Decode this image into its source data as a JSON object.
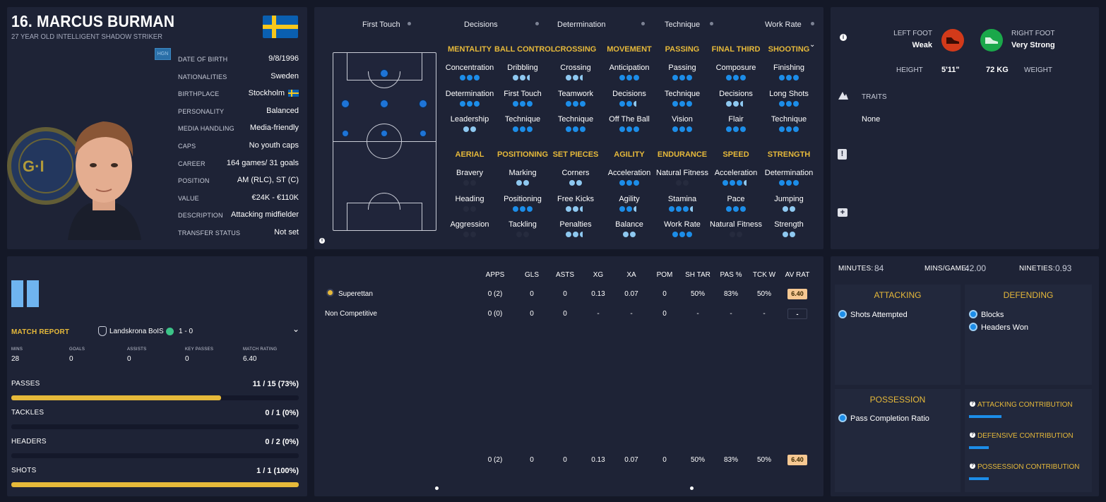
{
  "player": {
    "name": "16. MARCUS BURMAN",
    "subtitle": "27 YEAR OLD INTELLIGENT SHADOW STRIKER",
    "hgn_badge": "HGN",
    "flag_colors": {
      "blue": "#0a5fb0",
      "yellow": "#f6c71b"
    },
    "info": [
      {
        "key": "DATE OF BIRTH",
        "value": "9/8/1996"
      },
      {
        "key": "NATIONALITIES",
        "value": "Sweden"
      },
      {
        "key": "BIRTHPLACE",
        "value": "Stockholm"
      },
      {
        "key": "PERSONALITY",
        "value": "Balanced"
      },
      {
        "key": "MEDIA HANDLING",
        "value": "Media-friendly"
      },
      {
        "key": "CAPS",
        "value": "No youth caps"
      },
      {
        "key": "CAREER",
        "value": "164  games/  31 goals"
      },
      {
        "key": "POSITION",
        "value": "AM (RLC), ST (C)"
      },
      {
        "key": "VALUE",
        "value": "€24K - €110K"
      },
      {
        "key": "DESCRIPTION",
        "value": "Attacking midfielder"
      },
      {
        "key": "TRANSFER STATUS",
        "value": "Not set"
      }
    ]
  },
  "highlights": [
    "First Touch",
    "Decisions",
    "Determination",
    "Technique",
    "Work Rate"
  ],
  "attributes": {
    "row1": [
      {
        "category": "MENTALITY",
        "items": [
          {
            "name": "Concentration",
            "dots": "fff"
          },
          {
            "name": "Determination",
            "dots": "fff"
          },
          {
            "name": "Leadership",
            "dots": "ll"
          }
        ]
      },
      {
        "category": "BALL CONTROL",
        "items": [
          {
            "name": "Dribbling",
            "dots": "llh"
          },
          {
            "name": "First Touch",
            "dots": "fff"
          },
          {
            "name": "Technique",
            "dots": "fff"
          }
        ]
      },
      {
        "category": "CROSSING",
        "items": [
          {
            "name": "Crossing",
            "dots": "llh"
          },
          {
            "name": "Teamwork",
            "dots": "fff"
          },
          {
            "name": "Technique",
            "dots": "fff"
          }
        ]
      },
      {
        "category": "MOVEMENT",
        "items": [
          {
            "name": "Anticipation",
            "dots": "fff"
          },
          {
            "name": "Decisions",
            "dots": "ffh"
          },
          {
            "name": "Off The Ball",
            "dots": "fff"
          }
        ]
      },
      {
        "category": "PASSING",
        "items": [
          {
            "name": "Passing",
            "dots": "fff"
          },
          {
            "name": "Technique",
            "dots": "fff"
          },
          {
            "name": "Vision",
            "dots": "fff"
          }
        ]
      },
      {
        "category": "FINAL THIRD",
        "items": [
          {
            "name": "Composure",
            "dots": "fff"
          },
          {
            "name": "Decisions",
            "dots": "llh"
          },
          {
            "name": "Flair",
            "dots": "fff"
          }
        ]
      },
      {
        "category": "SHOOTING",
        "items": [
          {
            "name": "Finishing",
            "dots": "fff"
          },
          {
            "name": "Long Shots",
            "dots": "fff"
          },
          {
            "name": "Technique",
            "dots": "fff"
          }
        ]
      }
    ],
    "row2": [
      {
        "category": "AERIAL",
        "items": [
          {
            "name": "Bravery",
            "dots": "dd"
          },
          {
            "name": "Heading",
            "dots": "dd"
          },
          {
            "name": "Aggression",
            "dots": "dd"
          }
        ]
      },
      {
        "category": "POSITIONING",
        "items": [
          {
            "name": "Marking",
            "dots": "ll"
          },
          {
            "name": "Positioning",
            "dots": "fff"
          },
          {
            "name": "Tackling",
            "dots": "dd"
          }
        ]
      },
      {
        "category": "SET PIECES",
        "items": [
          {
            "name": "Corners",
            "dots": "ll"
          },
          {
            "name": "Free Kicks",
            "dots": "llh"
          },
          {
            "name": "Penalties",
            "dots": "llh"
          }
        ]
      },
      {
        "category": "AGILITY",
        "items": [
          {
            "name": "Acceleration",
            "dots": "fff"
          },
          {
            "name": "Agility",
            "dots": "ffh"
          },
          {
            "name": "Balance",
            "dots": "ll"
          }
        ]
      },
      {
        "category": "ENDURANCE",
        "items": [
          {
            "name": "Natural Fitness",
            "dots": "dd"
          },
          {
            "name": "Stamina",
            "dots": "fffh"
          },
          {
            "name": "Work Rate",
            "dots": "fff"
          }
        ]
      },
      {
        "category": "SPEED",
        "items": [
          {
            "name": "Acceleration",
            "dots": "fffh"
          },
          {
            "name": "Pace",
            "dots": "fff"
          },
          {
            "name": "Natural Fitness",
            "dots": "dd"
          }
        ]
      },
      {
        "category": "STRENGTH",
        "items": [
          {
            "name": "Determination",
            "dots": "fff"
          },
          {
            "name": "Jumping",
            "dots": "ll"
          },
          {
            "name": "Strength",
            "dots": "ll"
          }
        ]
      }
    ]
  },
  "physical": {
    "left_foot_label": "LEFT FOOT",
    "left_foot_value": "Weak",
    "right_foot_label": "RIGHT FOOT",
    "right_foot_value": "Very Strong",
    "height_label": "HEIGHT",
    "height_value": "5'11\"",
    "weight_value": "72 KG",
    "weight_label": "WEIGHT",
    "left_foot_color": "#d23a1a",
    "right_foot_color": "#1aa84a"
  },
  "traits": {
    "title": "TRAITS",
    "value": "None"
  },
  "stats_table": {
    "headers": [
      "APPS",
      "GLS",
      "ASTS",
      "XG",
      "XA",
      "POM",
      "SH TAR",
      "PAS %",
      "TCK W",
      "AV RAT"
    ],
    "rows": [
      {
        "name": "Superettan",
        "cells": [
          "0 (2)",
          "0",
          "0",
          "0.13",
          "0.07",
          "0",
          "50%",
          "83%",
          "50%",
          "6.40"
        ]
      },
      {
        "name": "Non Competitive",
        "cells": [
          "0 (0)",
          "0",
          "0",
          "-",
          "-",
          "0",
          "-",
          "-",
          "-",
          "-"
        ]
      }
    ],
    "totals": [
      "0 (2)",
      "0",
      "0",
      "0.13",
      "0.07",
      "0",
      "50%",
      "83%",
      "50%",
      "6.40"
    ]
  },
  "match_report": {
    "label": "MATCH REPORT",
    "opponent": "Landskrona BoIS",
    "score": "1 - 0",
    "stats": [
      {
        "key": "MINS",
        "value": "28"
      },
      {
        "key": "GOALS",
        "value": "0"
      },
      {
        "key": "ASSISTS",
        "value": "0"
      },
      {
        "key": "KEY PASSES",
        "value": "0"
      },
      {
        "key": "MATCH RATING",
        "value": "6.40"
      }
    ],
    "bars": [
      {
        "key": "PASSES",
        "value": "11 / 15 (73%)",
        "fraction": 0.73
      },
      {
        "key": "TACKLES",
        "value": "0 / 1 (0%)",
        "fraction": 0
      },
      {
        "key": "HEADERS",
        "value": "0 / 2 (0%)",
        "fraction": 0
      },
      {
        "key": "SHOTS",
        "value": "1 / 1 (100%)",
        "fraction": 1.0
      }
    ]
  },
  "summary": {
    "minutes_label": "MINUTES:",
    "minutes_value": "84",
    "mins_game_label": "MINS/GAME:",
    "mins_game_value": "42.00",
    "nineties_label": "NINETIES:",
    "nineties_value": "0.93"
  },
  "sections": {
    "attacking": {
      "title": "ATTACKING",
      "items": [
        "Shots Attempted"
      ]
    },
    "defending": {
      "title": "DEFENDING",
      "items": [
        "Blocks",
        "Headers Won"
      ]
    },
    "possession": {
      "title": "POSSESSION",
      "items": [
        "Pass Completion Ratio"
      ]
    },
    "contributions": [
      "ATTACKING CONTRIBUTION",
      "DEFENSIVE CONTRIBUTION",
      "POSSESSION CONTRIBUTION"
    ]
  }
}
